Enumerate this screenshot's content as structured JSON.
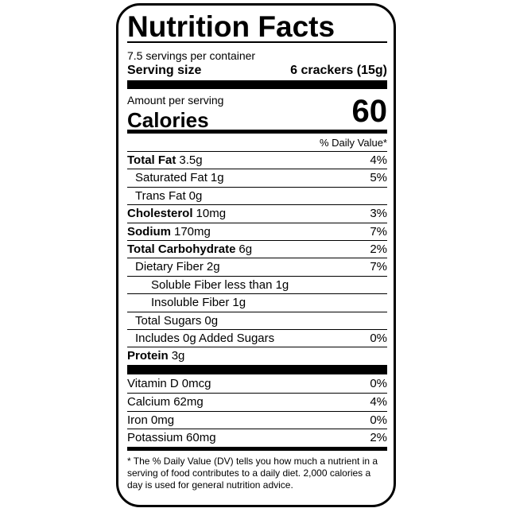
{
  "title": "Nutrition Facts",
  "servings": "7.5 servings per container",
  "serving_size": {
    "label": "Serving size",
    "value": "6 crackers (15g)"
  },
  "amount_per_serving": "Amount per serving",
  "calories": {
    "label": "Calories",
    "value": 60
  },
  "daily_value_header": "% Daily Value*",
  "nutrients": [
    {
      "name": "Total Fat",
      "amount": "3.5g",
      "dv": "4%"
    },
    {
      "name": "Saturated Fat",
      "amount": "1g",
      "dv": "5%"
    },
    {
      "name": "Trans Fat",
      "amount": "0g"
    },
    {
      "name": "Cholesterol",
      "amount": "10mg",
      "dv": "3%"
    },
    {
      "name": "Sodium",
      "amount": "170mg",
      "dv": "7%"
    },
    {
      "name": "Total Carbohydrate",
      "amount": "6g",
      "dv": "2%"
    },
    {
      "name": "Dietary Fiber",
      "amount": "2g",
      "dv": "7%"
    },
    {
      "name": "Soluble Fiber",
      "amount": "less than 1g"
    },
    {
      "name": "Insoluble Fiber",
      "amount": "1g"
    },
    {
      "name": "Total Sugars",
      "amount": "0g"
    },
    {
      "name": "Includes 0g Added Sugars",
      "dv": "0%"
    },
    {
      "name": "Protein",
      "amount": "3g"
    }
  ],
  "vitamins": [
    {
      "name": "Vitamin D",
      "amount": "0mcg",
      "dv": "0%"
    },
    {
      "name": "Calcium",
      "amount": "62mg",
      "dv": "4%"
    },
    {
      "name": "Iron",
      "amount": "0mg",
      "dv": "0%"
    },
    {
      "name": "Potassium",
      "amount": "60mg",
      "dv": "2%"
    }
  ],
  "footnote": "* The % Daily Value (DV) tells you how much a nutrient in a serving of food contributes to a daily diet. 2,000 calories a day is used for general nutrition advice."
}
